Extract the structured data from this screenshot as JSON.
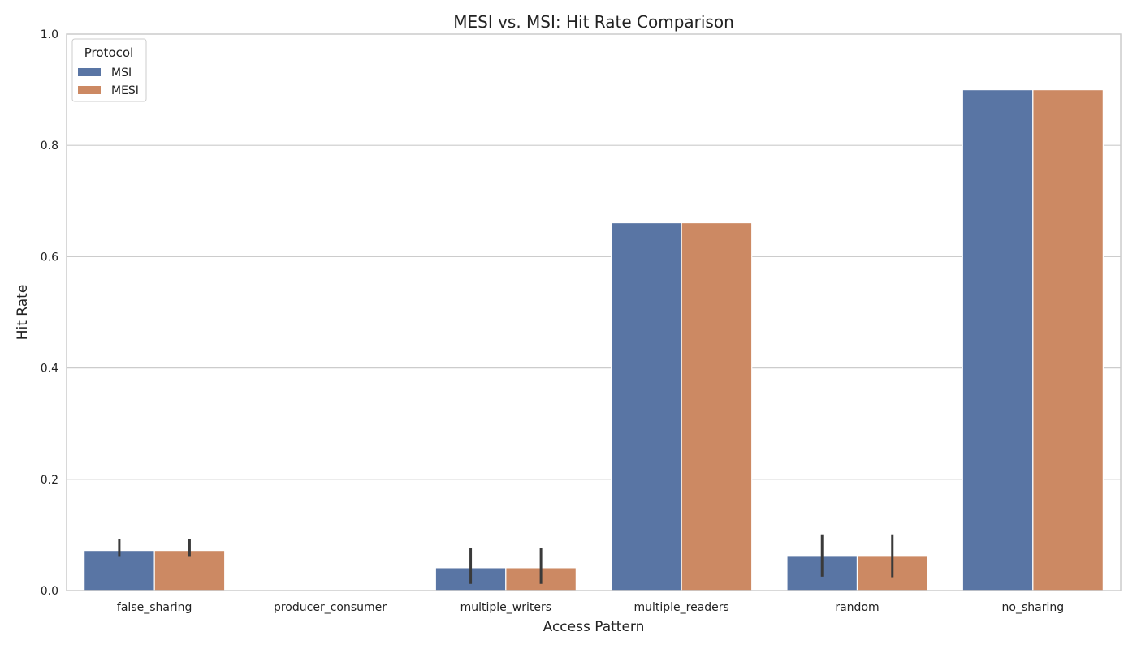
{
  "chart_data": {
    "type": "bar",
    "title": "MESI vs. MSI: Hit Rate Comparison",
    "xlabel": "Access Pattern",
    "ylabel": "Hit Rate",
    "ylim": [
      0,
      1.0
    ],
    "yticks": [
      "0.0",
      "0.2",
      "0.4",
      "0.6",
      "0.8",
      "1.0"
    ],
    "grid": "horizontal",
    "legend": {
      "title": "Protocol",
      "placement": "top-left"
    },
    "categories": [
      "false_sharing",
      "producer_consumer",
      "multiple_writers",
      "multiple_readers",
      "random",
      "no_sharing"
    ],
    "series": [
      {
        "name": "MSI",
        "color": "#5975a4",
        "values": [
          0.072,
          0.0,
          0.041,
          0.661,
          0.063,
          0.9
        ],
        "error_low": [
          0.062,
          0.0,
          0.012,
          0.661,
          0.025,
          0.9
        ],
        "error_high": [
          0.092,
          0.0,
          0.076,
          0.661,
          0.101,
          0.9
        ]
      },
      {
        "name": "MESI",
        "color": "#cc8963",
        "values": [
          0.072,
          0.0,
          0.041,
          0.661,
          0.063,
          0.9
        ],
        "error_low": [
          0.062,
          0.0,
          0.012,
          0.661,
          0.024,
          0.9
        ],
        "error_high": [
          0.092,
          0.0,
          0.076,
          0.661,
          0.101,
          0.9
        ]
      }
    ]
  }
}
